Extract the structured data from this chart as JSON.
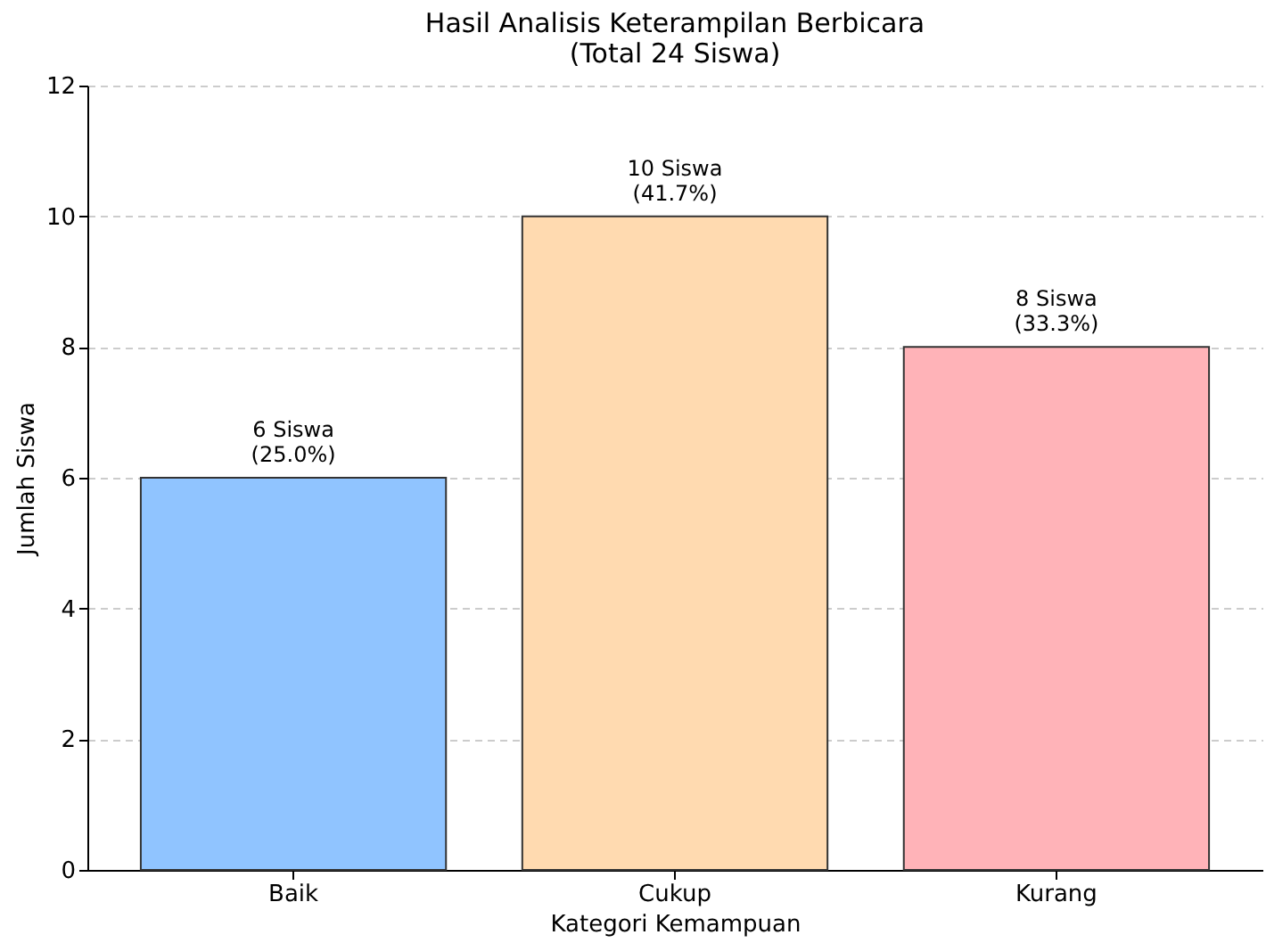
{
  "chart_data": {
    "type": "bar",
    "title": "Hasil Analisis Keterampilan Berbicara\n(Total 24 Siswa)",
    "xlabel": "Kategori Kemampuan",
    "ylabel": "Jumlah Siswa",
    "categories": [
      "Baik",
      "Cukup",
      "Kurang"
    ],
    "values": [
      6,
      10,
      8
    ],
    "colors": [
      "#90c4ff",
      "#ffdab0",
      "#ffb3b8"
    ],
    "value_labels": [
      "6 Siswa\n(25.0%)",
      "10 Siswa\n(41.7%)",
      "8 Siswa\n(33.3%)"
    ],
    "ylim": [
      0,
      12
    ],
    "yticks": [
      0,
      2,
      4,
      6,
      8,
      10,
      12
    ],
    "grid": "y"
  }
}
